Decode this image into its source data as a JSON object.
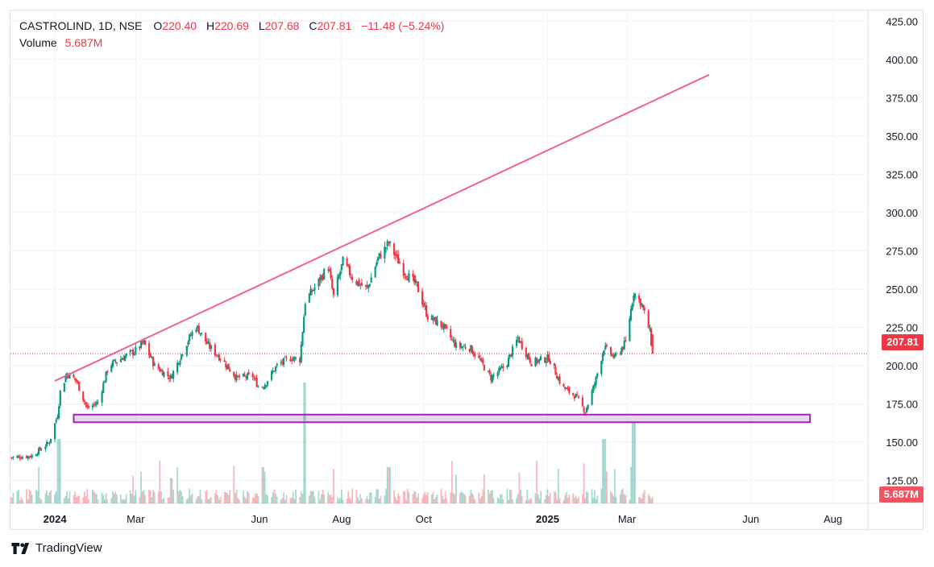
{
  "header": {
    "symbol": "CASTROLIND, 1D, NSE",
    "o_label": "O",
    "o": "220.40",
    "h_label": "H",
    "h": "220.69",
    "l_label": "L",
    "l": "207.68",
    "c_label": "C",
    "c": "207.81",
    "change": "−11.48 (−5.24%)",
    "volume_label": "Volume",
    "volume": "5.687M"
  },
  "price_tag": "207.81",
  "volume_tag": "5.687M",
  "branding": "TradingView",
  "colors": {
    "up": "#089981",
    "down": "#f23645",
    "trendline": "#f06292",
    "support_box": "#9c27b0",
    "last_price": "#f23645"
  },
  "chart_data": {
    "type": "candlestick",
    "symbol": "CASTROLIND",
    "interval": "1D",
    "exchange": "NSE",
    "y_ticks": [
      125,
      150,
      175,
      200,
      225,
      250,
      275,
      300,
      325,
      350,
      375,
      400,
      425
    ],
    "ylim": [
      110,
      432
    ],
    "x_ticks": [
      "2024",
      "Mar",
      "Jun",
      "Aug",
      "Oct",
      "2025",
      "Mar",
      "Jun",
      "Aug"
    ],
    "x_tick_dates": [
      "2024-01-01",
      "2024-03-01",
      "2024-06-01",
      "2024-08-01",
      "2024-10-01",
      "2025-01-01",
      "2025-03-01",
      "2025-06-01",
      "2025-08-01"
    ],
    "xlim": [
      "2023-11-29",
      "2025-08-27"
    ],
    "last_price": 207.81,
    "price_path": [
      [
        "2023-11-29",
        140
      ],
      [
        "2023-12-15",
        141
      ],
      [
        "2023-12-28",
        150
      ],
      [
        "2024-01-03",
        168
      ],
      [
        "2024-01-05",
        183
      ],
      [
        "2024-01-10",
        195
      ],
      [
        "2024-01-17",
        190
      ],
      [
        "2024-01-25",
        172
      ],
      [
        "2024-02-02",
        176
      ],
      [
        "2024-02-10",
        200
      ],
      [
        "2024-02-22",
        206
      ],
      [
        "2024-03-01",
        210
      ],
      [
        "2024-03-07",
        215
      ],
      [
        "2024-03-15",
        200
      ],
      [
        "2024-03-27",
        192
      ],
      [
        "2024-04-08",
        215
      ],
      [
        "2024-04-15",
        226
      ],
      [
        "2024-04-24",
        213
      ],
      [
        "2024-05-03",
        205
      ],
      [
        "2024-05-15",
        192
      ],
      [
        "2024-05-27",
        193
      ],
      [
        "2024-06-01",
        185
      ],
      [
        "2024-06-05",
        188
      ],
      [
        "2024-06-14",
        200
      ],
      [
        "2024-06-24",
        205
      ],
      [
        "2024-07-01",
        204
      ],
      [
        "2024-07-05",
        242
      ],
      [
        "2024-07-15",
        255
      ],
      [
        "2024-07-22",
        265
      ],
      [
        "2024-07-26",
        245
      ],
      [
        "2024-08-02",
        268
      ],
      [
        "2024-08-10",
        256
      ],
      [
        "2024-08-20",
        250
      ],
      [
        "2024-08-28",
        270
      ],
      [
        "2024-09-05",
        280
      ],
      [
        "2024-09-16",
        262
      ],
      [
        "2024-09-26",
        252
      ],
      [
        "2024-10-04",
        232
      ],
      [
        "2024-10-15",
        226
      ],
      [
        "2024-10-25",
        213
      ],
      [
        "2024-11-04",
        212
      ],
      [
        "2024-11-12",
        203
      ],
      [
        "2024-11-20",
        192
      ],
      [
        "2024-12-01",
        200
      ],
      [
        "2024-12-10",
        218
      ],
      [
        "2024-12-20",
        202
      ],
      [
        "2025-01-02",
        205
      ],
      [
        "2025-01-12",
        186
      ],
      [
        "2025-01-22",
        180
      ],
      [
        "2025-01-29",
        170
      ],
      [
        "2025-02-05",
        188
      ],
      [
        "2025-02-12",
        212
      ],
      [
        "2025-02-20",
        205
      ],
      [
        "2025-02-28",
        215
      ],
      [
        "2025-03-06",
        248
      ],
      [
        "2025-03-12",
        240
      ],
      [
        "2025-03-18",
        222
      ],
      [
        "2025-03-20",
        207.81
      ]
    ],
    "volume_spikes": [
      {
        "date": "2024-01-04",
        "label": "large"
      },
      {
        "date": "2024-06-03",
        "label": "moderate"
      },
      {
        "date": "2024-07-05",
        "label": "largest"
      },
      {
        "date": "2024-09-05",
        "label": "moderate"
      },
      {
        "date": "2025-02-12",
        "label": "large"
      },
      {
        "date": "2025-03-06",
        "label": "very large"
      }
    ],
    "annotations": {
      "trendline": {
        "start": [
          "2024-01-01",
          190
        ],
        "end": [
          "2025-05-01",
          390
        ]
      },
      "support_zone": {
        "start": "2024-01-15",
        "end": "2025-07-15",
        "low": 163,
        "high": 168
      }
    }
  }
}
